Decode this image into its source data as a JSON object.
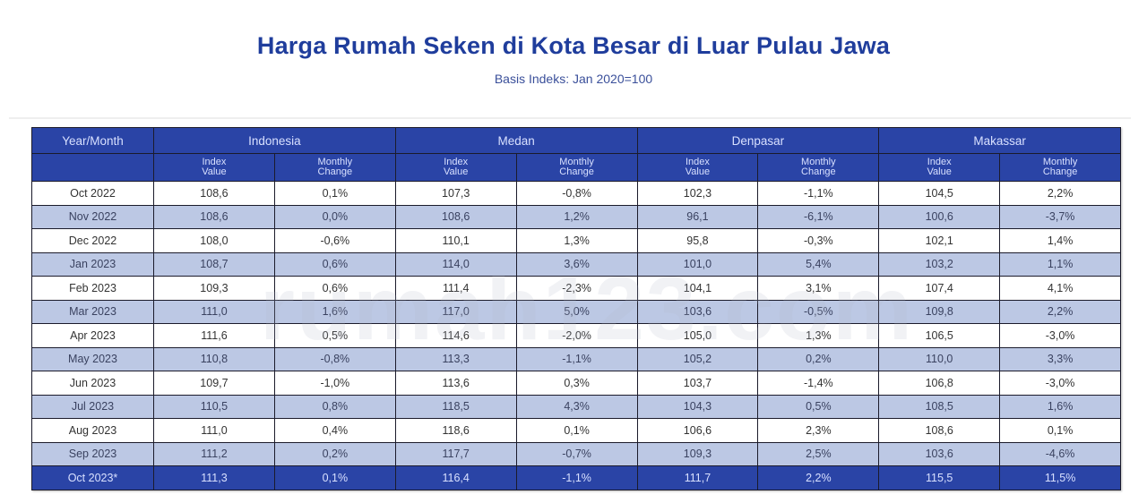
{
  "header": {
    "title": "Harga Rumah Seken di Kota Besar di Luar Pulau Jawa",
    "subtitle": "Basis Indeks: Jan 2020=100"
  },
  "watermark": "rumah123.com",
  "table": {
    "first_col_header": "Year/Month",
    "cities": [
      "Indonesia",
      "Medan",
      "Denpasar",
      "Makassar"
    ],
    "sub_headers": {
      "index_value": "Index Value",
      "monthly_change": "Monthly Change"
    },
    "rows": [
      {
        "month": "Oct 2022",
        "values": [
          "108,6",
          "0,1%",
          "107,3",
          "-0,8%",
          "102,3",
          "-1,1%",
          "104,5",
          "2,2%"
        ]
      },
      {
        "month": "Nov 2022",
        "values": [
          "108,6",
          "0,0%",
          "108,6",
          "1,2%",
          "96,1",
          "-6,1%",
          "100,6",
          "-3,7%"
        ]
      },
      {
        "month": "Dec 2022",
        "values": [
          "108,0",
          "-0,6%",
          "110,1",
          "1,3%",
          "95,8",
          "-0,3%",
          "102,1",
          "1,4%"
        ]
      },
      {
        "month": "Jan 2023",
        "values": [
          "108,7",
          "0,6%",
          "114,0",
          "3,6%",
          "101,0",
          "5,4%",
          "103,2",
          "1,1%"
        ]
      },
      {
        "month": "Feb 2023",
        "values": [
          "109,3",
          "0,6%",
          "111,4",
          "-2,3%",
          "104,1",
          "3,1%",
          "107,4",
          "4,1%"
        ]
      },
      {
        "month": "Mar 2023",
        "values": [
          "111,0",
          "1,6%",
          "117,0",
          "5,0%",
          "103,6",
          "-0,5%",
          "109,8",
          "2,2%"
        ]
      },
      {
        "month": "Apr 2023",
        "values": [
          "111,6",
          "0,5%",
          "114,6",
          "-2,0%",
          "105,0",
          "1,3%",
          "106,5",
          "-3,0%"
        ]
      },
      {
        "month": "May 2023",
        "values": [
          "110,8",
          "-0,8%",
          "113,3",
          "-1,1%",
          "105,2",
          "0,2%",
          "110,0",
          "3,3%"
        ]
      },
      {
        "month": "Jun 2023",
        "values": [
          "109,7",
          "-1,0%",
          "113,6",
          "0,3%",
          "103,7",
          "-1,4%",
          "106,8",
          "-3,0%"
        ]
      },
      {
        "month": "Jul 2023",
        "values": [
          "110,5",
          "0,8%",
          "118,5",
          "4,3%",
          "104,3",
          "0,5%",
          "108,5",
          "1,6%"
        ]
      },
      {
        "month": "Aug 2023",
        "values": [
          "111,0",
          "0,4%",
          "118,6",
          "0,1%",
          "106,6",
          "2,3%",
          "108,6",
          "0,1%"
        ]
      },
      {
        "month": "Sep 2023",
        "values": [
          "111,2",
          "0,2%",
          "117,7",
          "-0,7%",
          "109,3",
          "2,5%",
          "103,6",
          "-4,6%"
        ]
      },
      {
        "month": "Oct 2023*",
        "values": [
          "111,3",
          "0,1%",
          "116,4",
          "-1,1%",
          "111,7",
          "2,2%",
          "115,5",
          "11,5%"
        ]
      }
    ]
  },
  "colors": {
    "header_bg": "#2a44a6",
    "title": "#1f3d9c",
    "alt_row": "#bcc8e4",
    "row": "#ffffff"
  },
  "chart_data": {
    "type": "table",
    "title": "Harga Rumah Seken di Kota Besar di Luar Pulau Jawa",
    "subtitle": "Basis Indeks: Jan 2020=100",
    "categories": [
      "Oct 2022",
      "Nov 2022",
      "Dec 2022",
      "Jan 2023",
      "Feb 2023",
      "Mar 2023",
      "Apr 2023",
      "May 2023",
      "Jun 2023",
      "Jul 2023",
      "Aug 2023",
      "Sep 2023",
      "Oct 2023*"
    ],
    "series": [
      {
        "name": "Indonesia - Index Value",
        "values": [
          108.6,
          108.6,
          108.0,
          108.7,
          109.3,
          111.0,
          111.6,
          110.8,
          109.7,
          110.5,
          111.0,
          111.2,
          111.3
        ]
      },
      {
        "name": "Indonesia - Monthly Change (%)",
        "values": [
          0.1,
          0.0,
          -0.6,
          0.6,
          0.6,
          1.6,
          0.5,
          -0.8,
          -1.0,
          0.8,
          0.4,
          0.2,
          0.1
        ]
      },
      {
        "name": "Medan - Index Value",
        "values": [
          107.3,
          108.6,
          110.1,
          114.0,
          111.4,
          117.0,
          114.6,
          113.3,
          113.6,
          118.5,
          118.6,
          117.7,
          116.4
        ]
      },
      {
        "name": "Medan - Monthly Change (%)",
        "values": [
          -0.8,
          1.2,
          1.3,
          3.6,
          -2.3,
          5.0,
          -2.0,
          -1.1,
          0.3,
          4.3,
          0.1,
          -0.7,
          -1.1
        ]
      },
      {
        "name": "Denpasar - Index Value",
        "values": [
          102.3,
          96.1,
          95.8,
          101.0,
          104.1,
          103.6,
          105.0,
          105.2,
          103.7,
          104.3,
          106.6,
          109.3,
          111.7
        ]
      },
      {
        "name": "Denpasar - Monthly Change (%)",
        "values": [
          -1.1,
          -6.1,
          -0.3,
          5.4,
          3.1,
          -0.5,
          1.3,
          0.2,
          -1.4,
          0.5,
          2.3,
          2.5,
          2.2
        ]
      },
      {
        "name": "Makassar - Index Value",
        "values": [
          104.5,
          100.6,
          102.1,
          103.2,
          107.4,
          109.8,
          106.5,
          110.0,
          106.8,
          108.5,
          108.6,
          103.6,
          115.5
        ]
      },
      {
        "name": "Makassar - Monthly Change (%)",
        "values": [
          2.2,
          -3.7,
          1.4,
          1.1,
          4.1,
          2.2,
          -3.0,
          3.3,
          -3.0,
          1.6,
          0.1,
          -4.6,
          11.5
        ]
      }
    ]
  }
}
